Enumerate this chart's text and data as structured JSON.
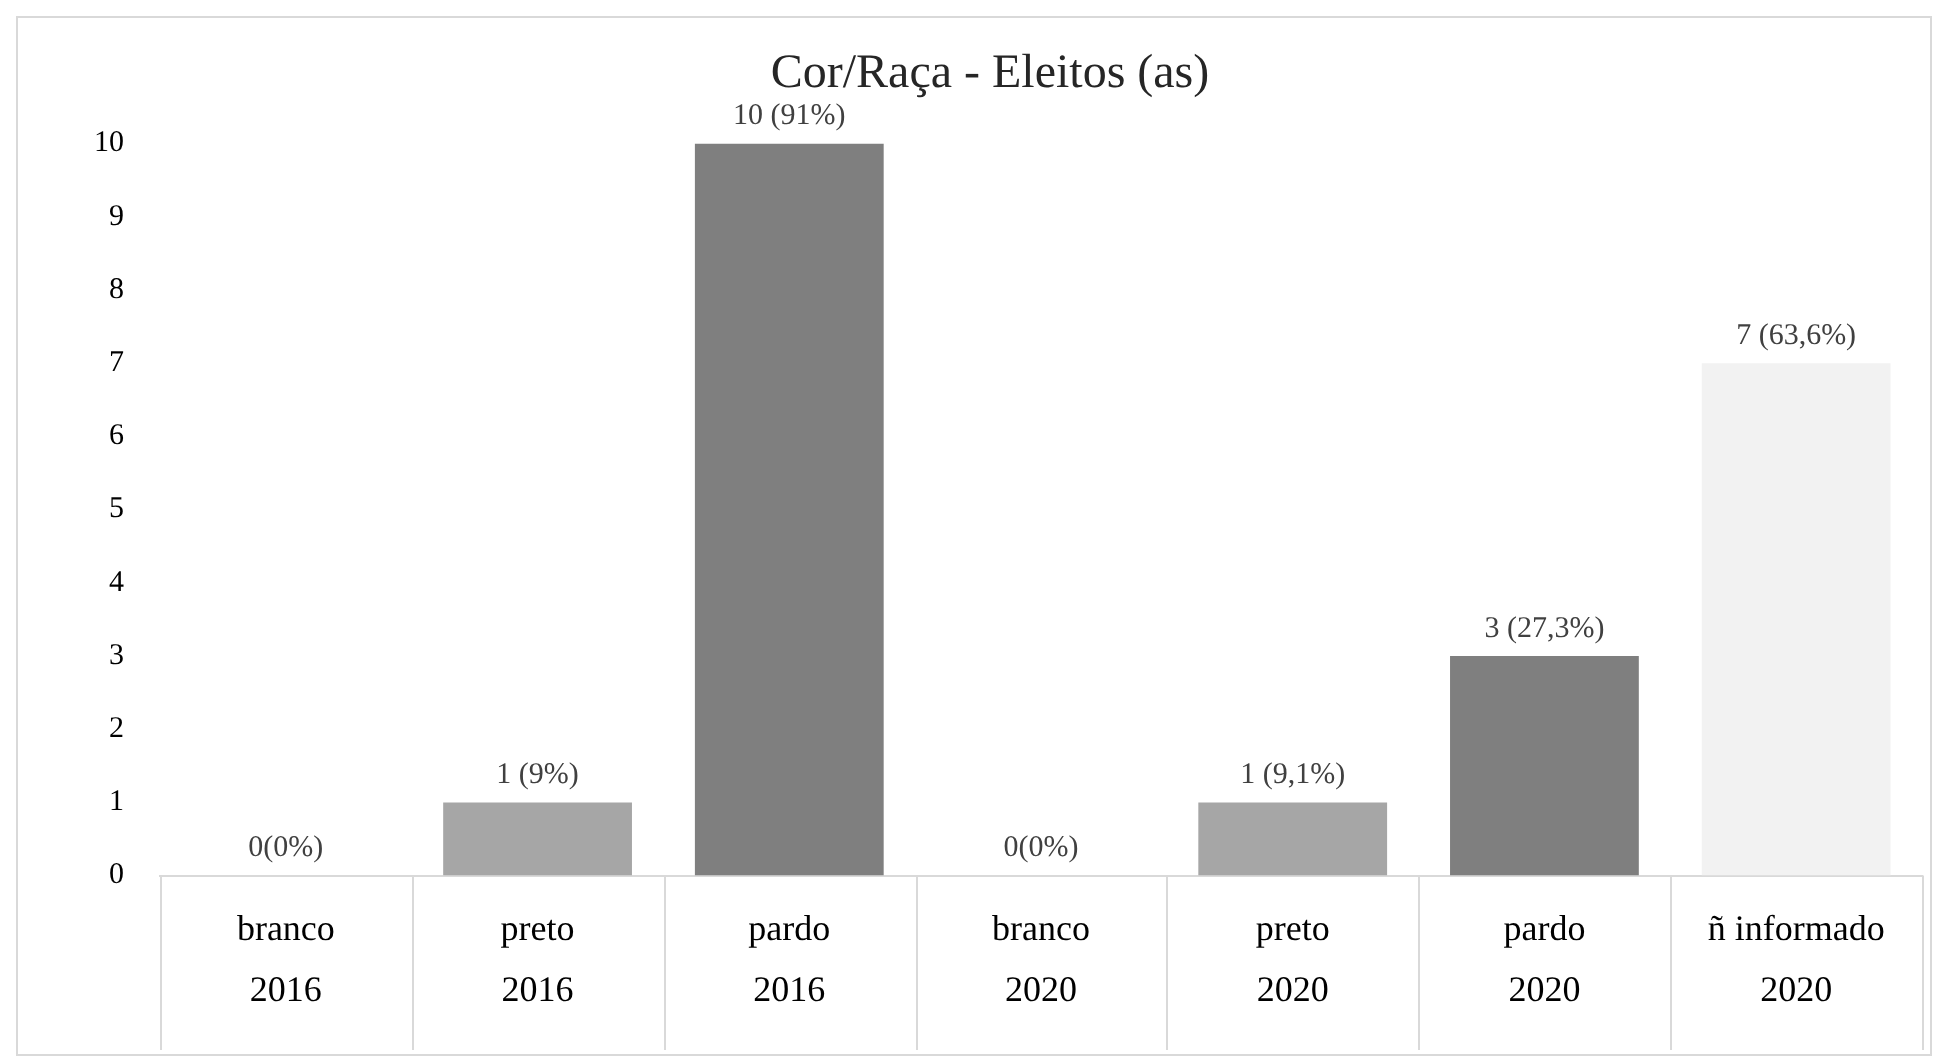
{
  "chart_data": {
    "type": "bar",
    "title": "Cor/Raça - Eleitos (as)",
    "categories": [
      "branco\n2016",
      "preto\n2016",
      "pardo\n2016",
      "branco\n2020",
      "preto\n2020",
      "pardo\n2020",
      "ñ informado\n2020"
    ],
    "values": [
      0,
      1,
      10,
      0,
      1,
      3,
      7
    ],
    "colors": [
      "#bfbfbf",
      "#a6a6a6",
      "#7f7f7f",
      "#bfbfbf",
      "#a6a6a6",
      "#7f7f7f",
      "#f2f2f2"
    ],
    "value_labels": [
      "0(0%)",
      "1 (9%)",
      "10 (91%)",
      "0(0%)",
      "1 (9,1%)",
      "3 (27,3%)",
      "7 (63,6%)"
    ],
    "ylim": [
      0,
      10
    ],
    "yticks": [
      0,
      1,
      2,
      3,
      4,
      5,
      6,
      7,
      8,
      9,
      10
    ],
    "grid": false,
    "legend": false
  }
}
